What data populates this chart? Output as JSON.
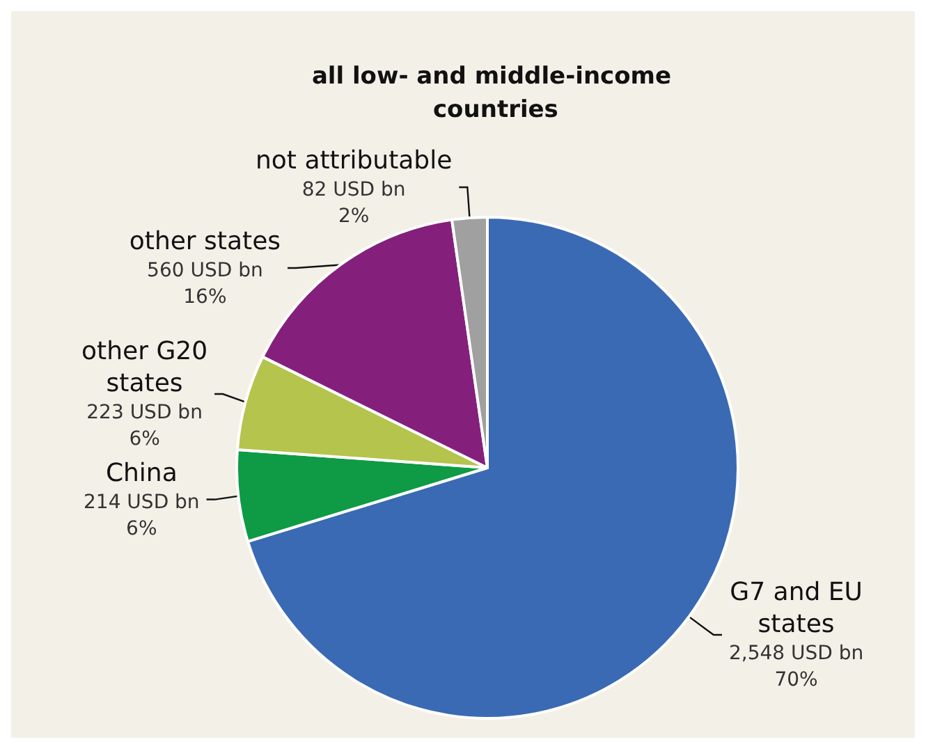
{
  "chart_data": {
    "type": "pie",
    "title": "all low- and middle-income countries",
    "categories": [
      "G7 and EU states",
      "China",
      "other G20 states",
      "other states",
      "not attributable"
    ],
    "values": [
      2548,
      214,
      223,
      560,
      82
    ],
    "colors": [
      "#3a6ab3",
      "#0f9a45",
      "#b5c44d",
      "#84207c",
      "#a0a0a0"
    ],
    "value_labels": [
      "2,548 USD bn\n70%",
      "214 USD bn\n6%",
      "223 USD bn\n6%",
      "560 USD bn\n16%",
      "82 USD bn\n2%"
    ],
    "legend": false
  }
}
